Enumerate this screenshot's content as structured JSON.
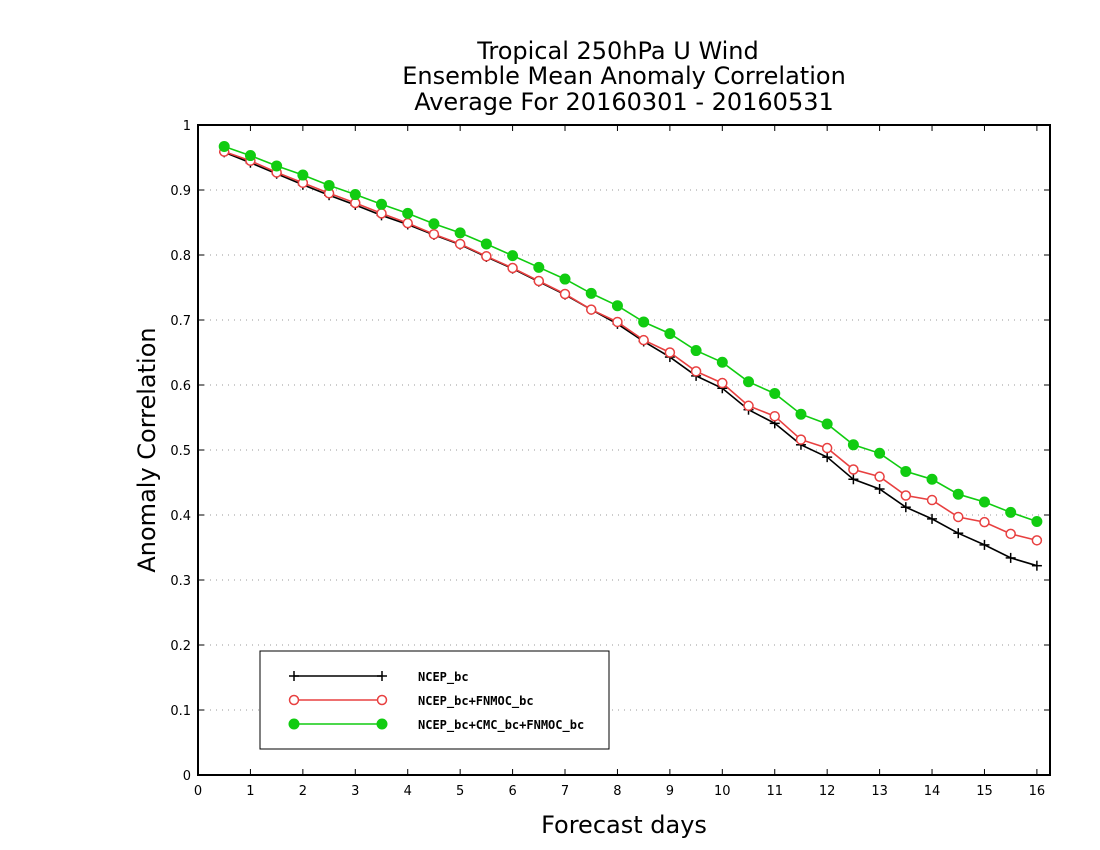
{
  "chart_data": {
    "type": "line",
    "title": [
      "Tropical 250hPa U Wind",
      "Ensemble Mean Anomaly Correlation",
      "Average For 20160301 - 20160531"
    ],
    "xlabel": "Forecast days",
    "ylabel": "Anomaly Correlation",
    "xlim": [
      0,
      16.25
    ],
    "ylim": [
      0,
      1
    ],
    "xticks": [
      "0",
      "1",
      "2",
      "3",
      "4",
      "5",
      "6",
      "7",
      "8",
      "9",
      "10",
      "11",
      "12",
      "13",
      "14",
      "15",
      "16"
    ],
    "yticks": [
      "0",
      "0.1",
      "0.2",
      "0.3",
      "0.4",
      "0.5",
      "0.6",
      "0.7",
      "0.8",
      "0.9",
      "1"
    ],
    "grid": true,
    "legend_position": "bottom-left",
    "x": [
      0.5,
      1,
      1.5,
      2,
      2.5,
      3,
      3.5,
      4,
      4.5,
      5,
      5.5,
      6,
      6.5,
      7,
      7.5,
      8,
      8.5,
      9,
      9.5,
      10,
      10.5,
      11,
      11.5,
      12,
      12.5,
      13,
      13.5,
      14,
      14.5,
      15,
      15.5,
      16
    ],
    "series": [
      {
        "name": "NCEP_bc",
        "color": "#000000",
        "marker": "plus",
        "values": [
          0.958,
          0.942,
          0.925,
          0.908,
          0.892,
          0.877,
          0.861,
          0.847,
          0.831,
          0.816,
          0.797,
          0.779,
          0.759,
          0.739,
          0.716,
          0.694,
          0.667,
          0.643,
          0.614,
          0.595,
          0.562,
          0.541,
          0.508,
          0.489,
          0.455,
          0.44,
          0.412,
          0.394,
          0.372,
          0.354,
          0.334,
          0.322
        ]
      },
      {
        "name": "NCEP_bc+FNMOC_bc",
        "color": "#e84040",
        "marker": "open-circle",
        "values": [
          0.959,
          0.945,
          0.927,
          0.911,
          0.895,
          0.88,
          0.864,
          0.849,
          0.832,
          0.817,
          0.798,
          0.78,
          0.76,
          0.74,
          0.716,
          0.697,
          0.669,
          0.65,
          0.621,
          0.603,
          0.568,
          0.552,
          0.516,
          0.503,
          0.47,
          0.459,
          0.43,
          0.423,
          0.397,
          0.389,
          0.371,
          0.361
        ]
      },
      {
        "name": "NCEP_bc+CMC_bc+FNMOC_bc",
        "color": "#11cc11",
        "marker": "filled-circle",
        "values": [
          0.967,
          0.953,
          0.937,
          0.923,
          0.907,
          0.893,
          0.878,
          0.864,
          0.848,
          0.834,
          0.817,
          0.799,
          0.781,
          0.763,
          0.741,
          0.722,
          0.697,
          0.679,
          0.653,
          0.635,
          0.605,
          0.587,
          0.555,
          0.54,
          0.508,
          0.495,
          0.467,
          0.455,
          0.432,
          0.42,
          0.404,
          0.39
        ]
      }
    ]
  }
}
